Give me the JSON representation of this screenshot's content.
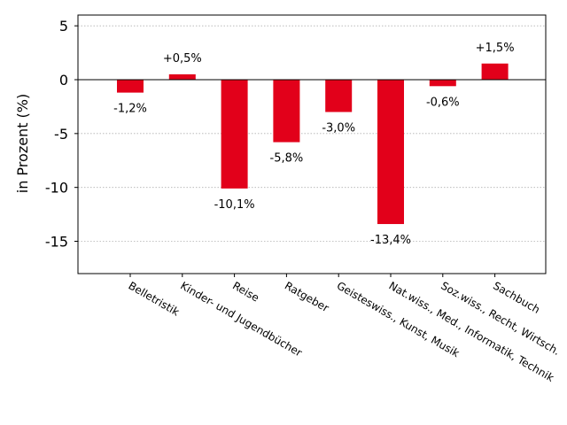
{
  "chart_data": {
    "type": "bar",
    "categories": [
      "Belletristik",
      "Kinder- und Jugendbücher",
      "Reise",
      "Ratgeber",
      "Geisteswiss., Kunst, Musik",
      "Nat.wiss., Med., Informatik, Technik",
      "Soz.wiss., Recht, Wirtsch.",
      "Sachbuch"
    ],
    "values": [
      -1.2,
      0.5,
      -10.1,
      -5.8,
      -3.0,
      -13.4,
      -0.6,
      1.5
    ],
    "data_labels": [
      "-1,2%",
      "+0,5%",
      "-10,1%",
      "-5,8%",
      "-3,0%",
      "-13,4%",
      "-0,6%",
      "+1,5%"
    ],
    "ylabel": "in Prozent (%)",
    "ylim": [
      -18,
      6
    ],
    "yticks": [
      5,
      0,
      -5,
      -10,
      -15
    ],
    "grid": true,
    "bar_color": "#e2001a"
  }
}
